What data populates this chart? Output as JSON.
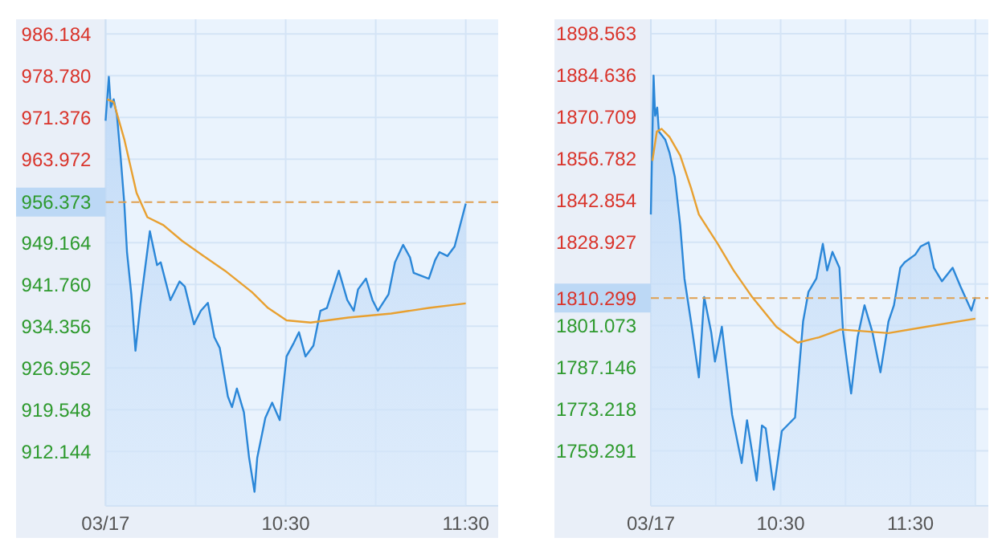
{
  "chart_data": [
    {
      "type": "area",
      "xlim": [
        9.5,
        11.68
      ],
      "xticks": [
        {
          "value": 9.5,
          "label": "03/17"
        },
        {
          "value": 10,
          "label": null
        },
        {
          "value": 10.5,
          "label": "10:30"
        },
        {
          "value": 11,
          "label": null
        },
        {
          "value": 11.5,
          "label": "11:30"
        }
      ],
      "ylim": [
        902.5,
        988.8
      ],
      "yticks": [
        986.184,
        {
          "value": 978.78,
          "label": "978.780"
        },
        971.376,
        963.972,
        949.164,
        {
          "value": 941.76,
          "label": "941.760"
        },
        934.356,
        926.952,
        919.548,
        912.144
      ],
      "grid": true,
      "ref_lines": [
        {
          "axis": "y",
          "value": 956.373,
          "label": "956.373",
          "color": "#e0a050",
          "line_style": "dashed"
        }
      ],
      "series": [
        {
          "color": "#2b87d8",
          "x": [
            9.5,
            9.518,
            9.529,
            9.545,
            9.563,
            9.583,
            9.604,
            9.619,
            9.643,
            9.666,
            9.693,
            9.746,
            9.786,
            9.806,
            9.86,
            9.911,
            9.94,
            9.991,
            10.029,
            10.068,
            10.104,
            10.134,
            10.179,
            10.202,
            10.229,
            10.268,
            10.297,
            10.327,
            10.342,
            10.387,
            10.425,
            10.467,
            10.505,
            10.545,
            10.574,
            10.61,
            10.654,
            10.693,
            10.729,
            10.795,
            10.842,
            10.878,
            10.902,
            10.946,
            10.982,
            11.012,
            11.071,
            11.107,
            11.152,
            11.19,
            11.211,
            11.295,
            11.33,
            11.354,
            11.398,
            11.438,
            11.5
          ],
          "values": [
            970.8,
            978.6,
            973.2,
            974.6,
            971.8,
            964.6,
            956.1,
            947.5,
            940.0,
            930.0,
            938.1,
            951.2,
            945.2,
            945.7,
            939.0,
            942.3,
            941.4,
            934.7,
            937.1,
            938.5,
            932.4,
            930.5,
            921.9,
            920.0,
            923.3,
            919.1,
            911.0,
            905.0,
            911.0,
            918.1,
            920.8,
            917.7,
            929.0,
            931.4,
            933.3,
            929.0,
            930.9,
            937.1,
            937.6,
            944.2,
            939.0,
            937.1,
            940.9,
            942.8,
            939.0,
            937.1,
            940.0,
            945.7,
            948.8,
            946.6,
            943.8,
            942.8,
            946.1,
            947.5,
            946.8,
            948.5,
            956.1
          ]
        },
        {
          "type": "line",
          "color": "#e8a030",
          "x": [
            9.509,
            9.545,
            9.604,
            9.672,
            9.732,
            9.821,
            9.925,
            10.045,
            10.163,
            10.313,
            10.402,
            10.505,
            10.639,
            10.848,
            11.086,
            11.295,
            11.5
          ],
          "values": [
            974.6,
            974.1,
            967.5,
            958.0,
            953.7,
            952.3,
            949.5,
            946.8,
            944.2,
            940.4,
            937.6,
            935.4,
            935.0,
            935.9,
            936.6,
            937.6,
            938.4
          ]
        }
      ]
    },
    {
      "type": "area",
      "xlim": [
        9.5,
        12.1
      ],
      "xticks": [
        {
          "value": 9.5,
          "label": "03/17"
        },
        {
          "value": 10,
          "label": null
        },
        {
          "value": 10.5,
          "label": "10:30"
        },
        {
          "value": 11,
          "label": null
        },
        {
          "value": 11.5,
          "label": "11:30"
        },
        {
          "value": 12,
          "label": null
        }
      ],
      "ylim": [
        1740.9,
        1903.4
      ],
      "yticks": [
        1898.563,
        1884.636,
        1870.709,
        1856.782,
        1842.854,
        1828.927,
        {
          "value": 1815,
          "label": null
        },
        1801.073,
        1787.146,
        1773.218,
        1759.291
      ],
      "grid": true,
      "ref_lines": [
        {
          "axis": "y",
          "value": 1810.299,
          "label": "1810.299",
          "color": "#e0a050",
          "line_style": "dashed"
        }
      ],
      "series": [
        {
          "color": "#2b87d8",
          "x": [
            9.5,
            9.521,
            9.533,
            9.549,
            9.562,
            9.611,
            9.644,
            9.685,
            9.726,
            9.759,
            9.809,
            9.87,
            9.911,
            9.965,
            9.994,
            10.047,
            10.126,
            10.2,
            10.241,
            10.315,
            10.356,
            10.385,
            10.447,
            10.509,
            10.611,
            10.673,
            10.714,
            10.775,
            10.825,
            10.858,
            10.899,
            10.953,
            10.981,
            11.043,
            11.093,
            11.146,
            11.207,
            11.269,
            11.331,
            11.373,
            11.422,
            11.455,
            11.537,
            11.578,
            11.64,
            11.681,
            11.743,
            11.825,
            11.886,
            11.969,
            12.0
          ],
          "values": [
            1838.2,
            1884.6,
            1871.2,
            1873.9,
            1865.9,
            1863.2,
            1858.8,
            1850.7,
            1834.7,
            1816.8,
            1802.5,
            1783.8,
            1810.6,
            1798.9,
            1789.1,
            1800.7,
            1771.3,
            1755.2,
            1769.5,
            1749.3,
            1767.7,
            1766.8,
            1746.3,
            1765.9,
            1770.4,
            1802.5,
            1812.3,
            1816.8,
            1828.4,
            1819.5,
            1825.7,
            1820.4,
            1798.9,
            1778.4,
            1797.2,
            1807.9,
            1798.9,
            1785.5,
            1802.5,
            1807.9,
            1820.4,
            1822.2,
            1824.8,
            1827.5,
            1828.9,
            1820.4,
            1815.9,
            1820.4,
            1814.1,
            1806.1,
            1810.6
          ]
        },
        {
          "type": "line",
          "color": "#e8a030",
          "x": [
            9.512,
            9.546,
            9.583,
            9.644,
            9.726,
            9.809,
            9.87,
            10.015,
            10.138,
            10.281,
            10.467,
            10.632,
            10.796,
            10.961,
            11.331,
            11.62,
            12.0
          ],
          "values": [
            1856.1,
            1865.9,
            1866.8,
            1864.1,
            1857.9,
            1847.1,
            1838.2,
            1828.4,
            1819.5,
            1810.6,
            1800.7,
            1795.4,
            1797.2,
            1799.8,
            1798.6,
            1800.7,
            1803.4
          ]
        }
      ]
    }
  ]
}
